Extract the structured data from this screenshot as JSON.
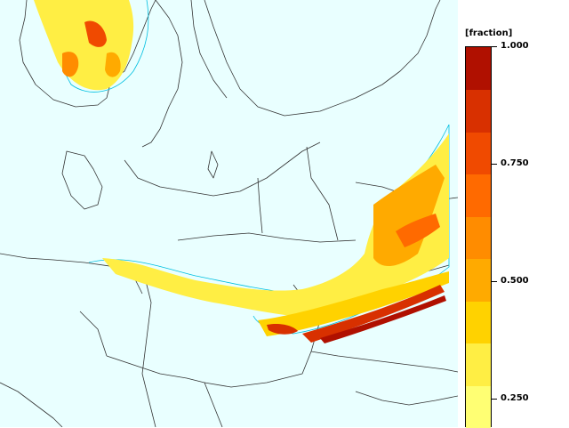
{
  "legend": {
    "unit": "[fraction]",
    "ticks": [
      {
        "value": 1.0,
        "label": "1.000"
      },
      {
        "value": 0.75,
        "label": "0.750"
      },
      {
        "value": 0.5,
        "label": "0.500"
      },
      {
        "value": 0.25,
        "label": "0.250"
      }
    ],
    "colors": [
      "#ffff73",
      "#ffee44",
      "#ffd200",
      "#ffaa00",
      "#ff8c00",
      "#ff6a00",
      "#f04a00",
      "#d83000",
      "#b01000"
    ]
  },
  "colors": {
    "ocean": "#e9ffff",
    "coastline": "#333333",
    "contour": "#00bfe0"
  }
}
